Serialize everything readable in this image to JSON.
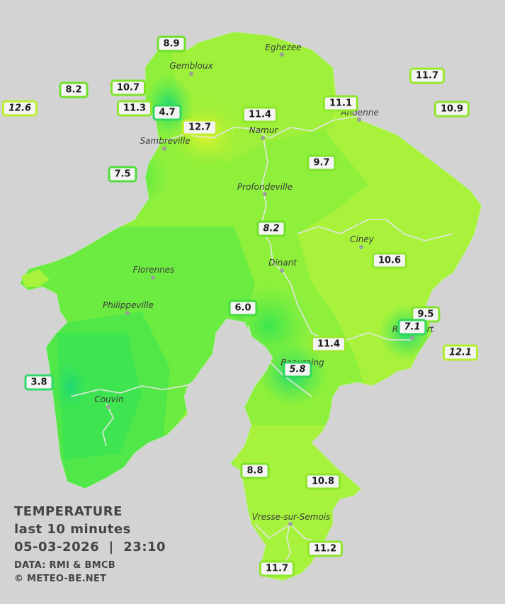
{
  "legend": {
    "title": "TEMPERATURE",
    "subtitle": "last 10 minutes",
    "datetime": "05-03-2026  |  23:10",
    "source": "DATA: RMI & BMCB",
    "copyright": "© METEO-BE.NET"
  },
  "cities": [
    {
      "id": "eghezee",
      "name": "Eghezee"
    },
    {
      "id": "gembloux",
      "name": "Gembloux"
    },
    {
      "id": "andenne",
      "name": "Andenne"
    },
    {
      "id": "namur",
      "name": "Namur"
    },
    {
      "id": "sambreville",
      "name": "Sambreville"
    },
    {
      "id": "profondeville",
      "name": "Profondeville"
    },
    {
      "id": "ciney",
      "name": "Ciney"
    },
    {
      "id": "florennes",
      "name": "Florennes"
    },
    {
      "id": "dinant",
      "name": "Dinant"
    },
    {
      "id": "philippeville",
      "name": "Philippeville"
    },
    {
      "id": "rochefort",
      "name": "Rochefort"
    },
    {
      "id": "beauraing",
      "name": "Beauraing"
    },
    {
      "id": "couvin",
      "name": "Couvin"
    },
    {
      "id": "vresse",
      "name": "Vresse-sur-Semois"
    }
  ],
  "readings": [
    {
      "value": "8.9",
      "italic": false,
      "color": "#6fe02a"
    },
    {
      "value": "8.2",
      "italic": false,
      "color": "#6fe02a"
    },
    {
      "value": "10.7",
      "italic": false,
      "color": "#7fe32a"
    },
    {
      "value": "12.6",
      "italic": true,
      "color": "#b9f02c"
    },
    {
      "value": "11.3",
      "italic": false,
      "color": "#8ee62b"
    },
    {
      "value": "4.7",
      "italic": false,
      "color": "#2fd85a"
    },
    {
      "value": "12.7",
      "italic": false,
      "color": "#c3ef2e"
    },
    {
      "value": "11.4",
      "italic": false,
      "color": "#8ee62b"
    },
    {
      "value": "11.1",
      "italic": false,
      "color": "#8ee62b"
    },
    {
      "value": "11.7",
      "italic": false,
      "color": "#9be92b"
    },
    {
      "value": "10.9",
      "italic": false,
      "color": "#8ee62b"
    },
    {
      "value": "7.5",
      "italic": false,
      "color": "#4fdf3a"
    },
    {
      "value": "9.7",
      "italic": false,
      "color": "#7fe32a"
    },
    {
      "value": "8.2",
      "italic": true,
      "color": "#6fe02a"
    },
    {
      "value": "10.6",
      "italic": false,
      "color": "#8ee62b"
    },
    {
      "value": "6.0",
      "italic": false,
      "color": "#45dc3e"
    },
    {
      "value": "9.5",
      "italic": false,
      "color": "#7fe32a"
    },
    {
      "value": "7.1",
      "italic": true,
      "color": "#2fd85a"
    },
    {
      "value": "12.1",
      "italic": true,
      "color": "#b3ee2c"
    },
    {
      "value": "11.4",
      "italic": false,
      "color": "#9be92b"
    },
    {
      "value": "5.8",
      "italic": true,
      "color": "#2fd85a"
    },
    {
      "value": "3.8",
      "italic": false,
      "color": "#34d86a"
    },
    {
      "value": "8.8",
      "italic": false,
      "color": "#7fe32a"
    },
    {
      "value": "10.8",
      "italic": false,
      "color": "#8ee62b"
    },
    {
      "value": "11.2",
      "italic": false,
      "color": "#8ee62b"
    },
    {
      "value": "11.7",
      "italic": false,
      "color": "#8ee62b"
    }
  ],
  "colors": {
    "background": "#d3d3d3",
    "base_fill": "#8ff03c",
    "warm_fill": "#a8f23c",
    "cool_fill": "#4ee84a",
    "cold_fill": "#2be36a",
    "hot_spot": "#d6f530",
    "river": "#e6e6e6",
    "label_border": "#58e52a"
  }
}
